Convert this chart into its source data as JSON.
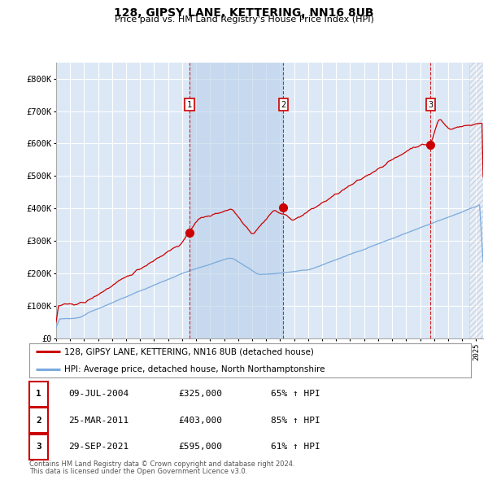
{
  "title": "128, GIPSY LANE, KETTERING, NN16 8UB",
  "subtitle": "Price paid vs. HM Land Registry's House Price Index (HPI)",
  "legend_red": "128, GIPSY LANE, KETTERING, NN16 8UB (detached house)",
  "legend_blue": "HPI: Average price, detached house, North Northamptonshire",
  "footer1": "Contains HM Land Registry data © Crown copyright and database right 2024.",
  "footer2": "This data is licensed under the Open Government Licence v3.0.",
  "sales": [
    {
      "num": 1,
      "date": "09-JUL-2004",
      "price": 325000,
      "pct": "65%",
      "x_year": 2004.52
    },
    {
      "num": 2,
      "date": "25-MAR-2011",
      "price": 403000,
      "pct": "85%",
      "x_year": 2011.23
    },
    {
      "num": 3,
      "date": "29-SEP-2021",
      "price": 595000,
      "pct": "61%",
      "x_year": 2021.75
    }
  ],
  "highlight_span": [
    2004.52,
    2011.23
  ],
  "hatch_start": 2024.5,
  "ylim": [
    0,
    850000
  ],
  "xlim_start": 1995.0,
  "xlim_end": 2025.5,
  "plot_bg": "#dce8f5",
  "red_color": "#cc0000",
  "blue_color": "#7aaadd",
  "grid_color": "#ffffff"
}
